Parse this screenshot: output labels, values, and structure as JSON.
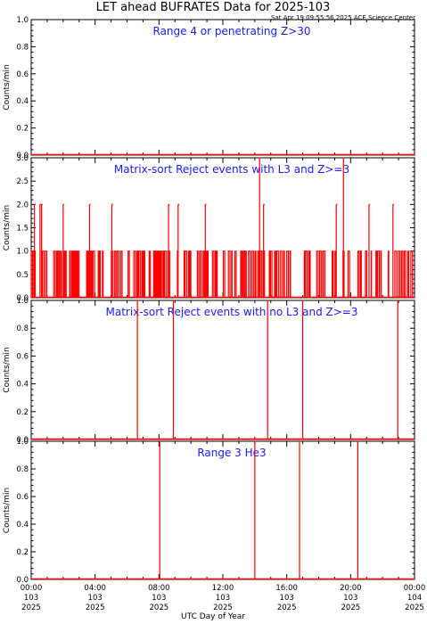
{
  "header": {
    "title": "LET ahead BUFRATES Data for 2025-103",
    "timestamp": "Sat Apr 19 09:55:56 2025 ACE Science Center"
  },
  "chart_data": [
    {
      "type": "line",
      "label": "Range 4 or  penetrating Z>30",
      "ylabel": "Counts/min",
      "ylim": [
        0,
        1.0
      ],
      "yticks": [
        "0.0",
        "0.2",
        "0.4",
        "0.6",
        "0.8",
        "1.0"
      ],
      "color": "#ff0000",
      "spikes": []
    },
    {
      "type": "line",
      "label": "Matrix-sort Reject events with L3 and Z>=3",
      "ylabel": "Counts/min",
      "ylim": [
        0,
        3.0
      ],
      "yticks": [
        "0.0",
        "0.5",
        "1.0",
        "1.5",
        "2.0",
        "2.5",
        "3.0"
      ],
      "color": "#ff0000",
      "baseline_pattern": "frequent 0/1 counts throughout the day",
      "spikes": [
        {
          "x": 0.2,
          "y": 2
        },
        {
          "x": 0.55,
          "y": 2
        },
        {
          "x": 0.65,
          "y": 2
        },
        {
          "x": 2.0,
          "y": 2
        },
        {
          "x": 3.65,
          "y": 2
        },
        {
          "x": 5.05,
          "y": 2
        },
        {
          "x": 8.6,
          "y": 2
        },
        {
          "x": 9.2,
          "y": 2
        },
        {
          "x": 10.9,
          "y": 2
        },
        {
          "x": 14.3,
          "y": 3
        },
        {
          "x": 14.55,
          "y": 2
        },
        {
          "x": 19.1,
          "y": 2
        },
        {
          "x": 19.55,
          "y": 3
        },
        {
          "x": 21.15,
          "y": 2
        },
        {
          "x": 22.65,
          "y": 2
        }
      ]
    },
    {
      "type": "line",
      "label": "Matrix-sort Reject events with no L3 and Z>=3",
      "ylabel": "Counts/min",
      "ylim": [
        0,
        1.0
      ],
      "yticks": [
        "0.0",
        "0.2",
        "0.4",
        "0.6",
        "0.8",
        "1.0"
      ],
      "color": "#ff0000",
      "spikes": [
        {
          "x": 6.65,
          "y": 1
        },
        {
          "x": 8.9,
          "y": 1
        },
        {
          "x": 14.8,
          "y": 1
        },
        {
          "x": 17.0,
          "y": 1
        },
        {
          "x": 22.95,
          "y": 1
        }
      ]
    },
    {
      "type": "line",
      "label": "Range 3 He3",
      "ylabel": "Counts/min",
      "ylim": [
        0,
        1.0
      ],
      "yticks": [
        "0.0",
        "0.2",
        "0.4",
        "0.6",
        "0.8",
        "1.0"
      ],
      "color": "#ff0000",
      "spikes": [
        {
          "x": 8.05,
          "y": 1
        },
        {
          "x": 14.0,
          "y": 1
        },
        {
          "x": 16.8,
          "y": 1
        },
        {
          "x": 20.45,
          "y": 1
        }
      ]
    }
  ],
  "xaxis": {
    "label": "UTC Day of Year",
    "xlim": [
      0,
      24
    ],
    "ticks": [
      {
        "x": 0,
        "time": "00:00",
        "doy": "103",
        "year": "2025"
      },
      {
        "x": 4,
        "time": "04:00",
        "doy": "103",
        "year": "2025"
      },
      {
        "x": 8,
        "time": "08:00",
        "doy": "103",
        "year": "2025"
      },
      {
        "x": 12,
        "time": "12:00",
        "doy": "103",
        "year": "2025"
      },
      {
        "x": 16,
        "time": "16:00",
        "doy": "103",
        "year": "2025"
      },
      {
        "x": 20,
        "time": "20:00",
        "doy": "103",
        "year": "2025"
      },
      {
        "x": 24,
        "time": "00:00",
        "doy": "104",
        "year": "2025"
      }
    ]
  }
}
